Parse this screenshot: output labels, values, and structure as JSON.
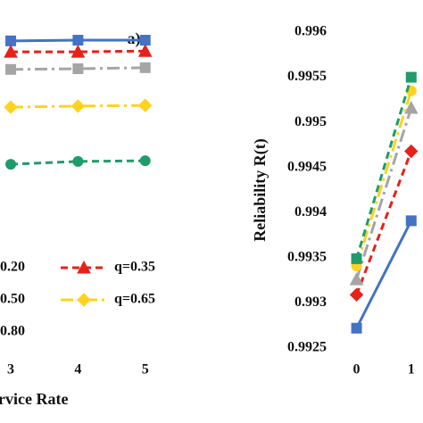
{
  "chart_data": [
    {
      "type": "line",
      "title": "a)",
      "x_label": "rvice Rate",
      "x": [
        3,
        4,
        5
      ],
      "xlim": [
        2.84,
        5.07
      ],
      "xticks": [
        3,
        4,
        5
      ],
      "ylim": [
        0,
        1
      ],
      "series": [
        {
          "name": "0.20",
          "color": "#4472c4",
          "marker": "square",
          "dash": "solid",
          "values": [
            0.884,
            0.886,
            0.886
          ]
        },
        {
          "name": "q=0.35",
          "color": "#e8201a",
          "marker": "triangle",
          "dash": "dashed",
          "values": [
            0.853,
            0.853,
            0.855
          ]
        },
        {
          "name": "0.50",
          "color": "#a5a5a5",
          "marker": "square",
          "dash": "dashdot",
          "values": [
            0.803,
            0.805,
            0.808
          ]
        },
        {
          "name": "q=0.65",
          "color": "#ffd21f",
          "marker": "diamond",
          "dash": "dashdot",
          "values": [
            0.696,
            0.699,
            0.701
          ]
        },
        {
          "name": "0.80",
          "color": "#1f9c6b",
          "marker": "circle",
          "dash": "dashed",
          "values": [
            0.534,
            0.542,
            0.544
          ]
        }
      ]
    },
    {
      "type": "line",
      "y_label": "Reliability R(t)",
      "x": [
        0,
        1
      ],
      "xlim": [
        -0.45,
        1.2
      ],
      "xticks": [
        0,
        1
      ],
      "ylim": [
        0.9925,
        0.996
      ],
      "yticks": [
        0.9925,
        0.993,
        0.9935,
        0.994,
        0.9945,
        0.995,
        0.9955,
        0.996
      ],
      "series": [
        {
          "color": "#4472c4",
          "marker": "square",
          "dash": "solid",
          "values": [
            0.99272,
            0.99391
          ]
        },
        {
          "color": "#e8201a",
          "marker": "diamond",
          "dash": "dashed",
          "values": [
            0.99309,
            0.99468
          ]
        },
        {
          "color": "#a5a5a5",
          "marker": "triangle",
          "dash": "dashdot",
          "values": [
            0.99326,
            0.99516
          ]
        },
        {
          "color": "#ffd21f",
          "marker": "circle",
          "dash": "dashdot",
          "values": [
            0.99341,
            0.99535
          ]
        },
        {
          "color": "#1f9c6b",
          "marker": "square",
          "dash": "dashed",
          "values": [
            0.99349,
            0.9955
          ]
        }
      ]
    }
  ]
}
